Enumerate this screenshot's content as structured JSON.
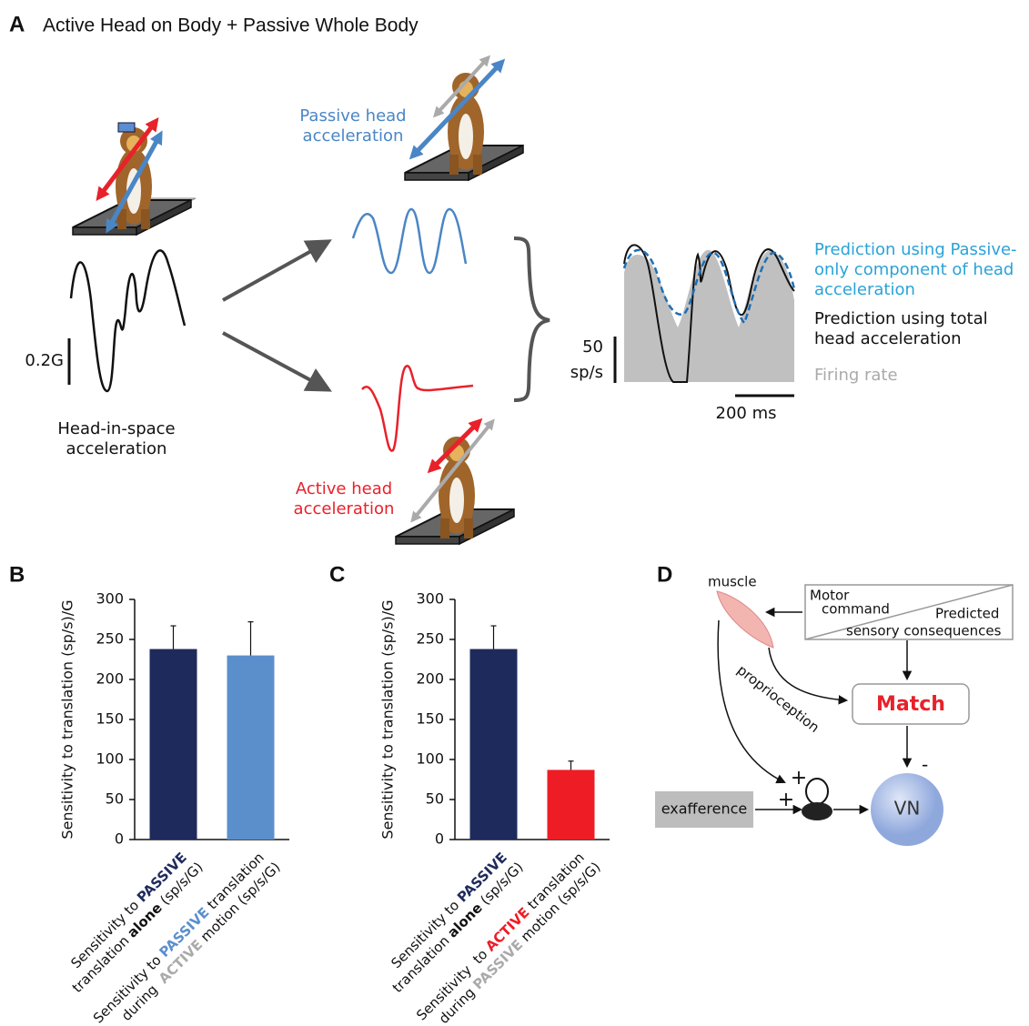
{
  "panel_a": {
    "letter": "A",
    "title": "Active Head on Body + Passive Whole Body",
    "passive_label": [
      "Passive head",
      "acceleration"
    ],
    "active_label": [
      "Active head",
      "acceleration"
    ],
    "head_label": [
      "Head-in-space",
      "acceleration"
    ],
    "scale_g": "0.2G",
    "scale_rate": [
      "50",
      "sp/s"
    ],
    "scale_time": "200 ms",
    "legend": [
      [
        "Prediction using Passive-",
        "only component of head",
        "acceleration"
      ],
      [
        "Prediction using total",
        "head acceleration"
      ],
      [
        "Firing rate"
      ]
    ]
  },
  "chart_data": [
    {
      "type": "bar",
      "panel_label": "B",
      "ylabel": "Sensitivity to translation (sp/s)/G",
      "categories": [
        [
          [
            {
              "text": "Sensitivity to "
            },
            {
              "text": "PASSIVE",
              "color": "#1f2a5c",
              "bold": true
            }
          ],
          [
            {
              "text": "translation "
            },
            {
              "text": "alone",
              "bold": true
            },
            {
              "text": " (sp/s/G)"
            }
          ]
        ],
        [
          [
            {
              "text": "Sensitivity to "
            },
            {
              "text": "PASSIVE",
              "color": "#5b8fcc",
              "bold": true
            },
            {
              "text": " translation"
            }
          ],
          [
            {
              "text": "during  "
            },
            {
              "text": "ACTIVE",
              "color": "#aaaaaa",
              "bold": true
            },
            {
              "text": " motion (sp/s/G)"
            }
          ]
        ]
      ],
      "values": [
        238,
        230
      ],
      "errors": [
        29,
        42
      ],
      "colors": [
        "#1f2a5c",
        "#5b8fcc"
      ],
      "ylim": [
        0,
        300
      ],
      "yticks": [
        0,
        50,
        100,
        150,
        200,
        250,
        300
      ]
    },
    {
      "type": "bar",
      "panel_label": "C",
      "ylabel": "Sensitivity to translation (sp/s)/G",
      "categories": [
        [
          [
            {
              "text": "Sensitivity to "
            },
            {
              "text": "PASSIVE",
              "color": "#1f2a5c",
              "bold": true
            }
          ],
          [
            {
              "text": "translation "
            },
            {
              "text": "alone",
              "bold": true
            },
            {
              "text": " (sp/s/G)"
            }
          ]
        ],
        [
          [
            {
              "text": "Sensitivity  to "
            },
            {
              "text": "ACTIVE",
              "color": "#ee1c25",
              "bold": true
            },
            {
              "text": " translation"
            }
          ],
          [
            {
              "text": "during "
            },
            {
              "text": "PASSIVE",
              "color": "#aaaaaa",
              "bold": true
            },
            {
              "text": " motion (sp/s/G)"
            }
          ]
        ]
      ],
      "values": [
        238,
        87
      ],
      "errors": [
        29,
        11
      ],
      "colors": [
        "#1f2a5c",
        "#ee1c25"
      ],
      "ylim": [
        0,
        300
      ],
      "yticks": [
        0,
        50,
        100,
        150,
        200,
        250,
        300
      ]
    }
  ],
  "panel_d": {
    "letter": "D",
    "muscle": "muscle",
    "motor": [
      "Motor",
      "command"
    ],
    "predicted": "Predicted",
    "sensory": "sensory consequences",
    "proprioception": "proprioception",
    "match": "Match",
    "exafference": "exafference",
    "vn": "VN",
    "plus_top": "+",
    "plus_bottom": "+",
    "minus": "-"
  }
}
